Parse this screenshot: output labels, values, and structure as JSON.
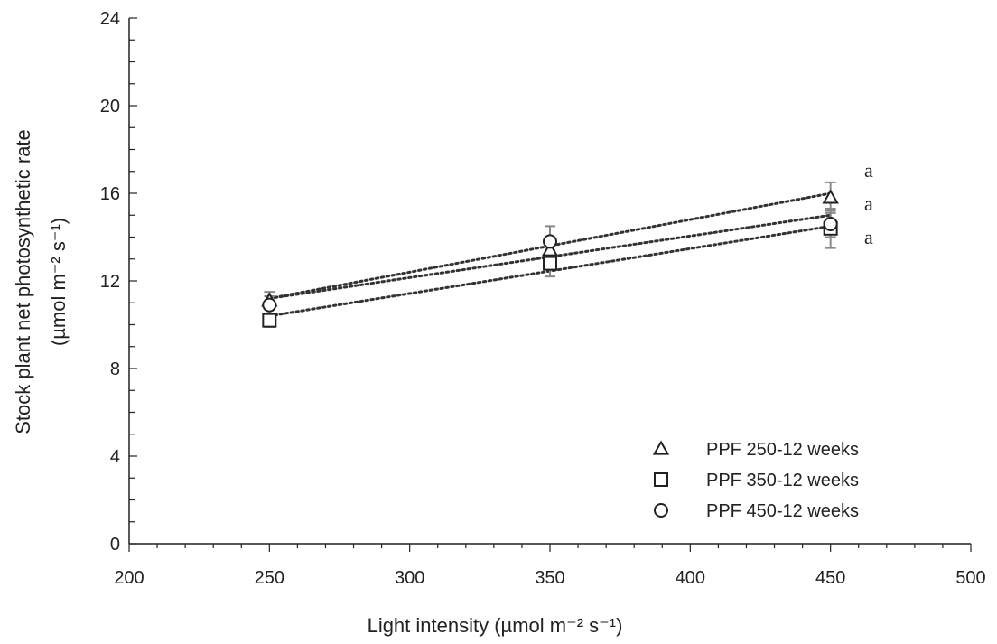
{
  "chart_data": {
    "type": "scatter",
    "xlabel": "Light intensity (µmol m⁻² s⁻¹)",
    "ylabel_line1": "Stock plant net photosynthetic rate",
    "ylabel_line2": "(µmol m⁻² s⁻¹)",
    "xlim": [
      200,
      500
    ],
    "ylim": [
      0,
      24
    ],
    "xticks": [
      "200",
      "250",
      "300",
      "350",
      "400",
      "450",
      "500"
    ],
    "yticks": [
      "0",
      "4",
      "8",
      "12",
      "16",
      "20",
      "24"
    ],
    "x": [
      250,
      350,
      450
    ],
    "grid": false,
    "legend_position": "bottom-right",
    "series": [
      {
        "name": "PPF 250-12 weeks",
        "marker": "triangle",
        "values": [
          11.1,
          13.4,
          15.8
        ],
        "errors": [
          0.4,
          0.5,
          0.7
        ],
        "trend": [
          11.2,
          13.6,
          16.0
        ],
        "sig_label": "a"
      },
      {
        "name": "PPF 350-12 weeks",
        "marker": "square",
        "values": [
          10.2,
          12.8,
          14.4
        ],
        "errors": [
          0.3,
          0.6,
          0.9
        ],
        "trend": [
          10.4,
          12.5,
          14.5
        ],
        "sig_label": "a"
      },
      {
        "name": "PPF 450-12 weeks",
        "marker": "circle",
        "values": [
          10.9,
          13.8,
          14.6
        ],
        "errors": [
          0.4,
          0.7,
          0.6
        ],
        "trend": [
          11.2,
          13.1,
          15.0
        ],
        "sig_label": "a"
      }
    ],
    "colors": {
      "marker": "#222222",
      "trend": "#333333",
      "error_bar": "#888888",
      "axis": "#222222"
    }
  }
}
